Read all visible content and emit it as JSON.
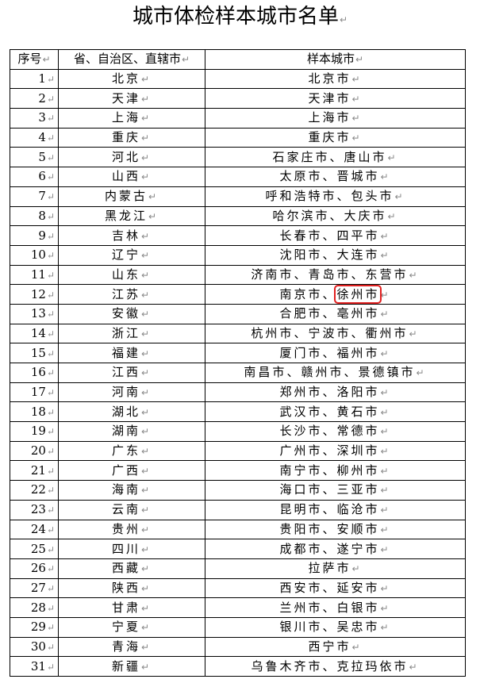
{
  "title": "城市体检样本城市名单",
  "headers": [
    "序号",
    "省、自治区、直辖市",
    "样本城市"
  ],
  "rows": [
    {
      "no": "1",
      "province": "北京",
      "cities": [
        "北京市"
      ]
    },
    {
      "no": "2",
      "province": "天津",
      "cities": [
        "天津市"
      ]
    },
    {
      "no": "3",
      "province": "上海",
      "cities": [
        "上海市"
      ]
    },
    {
      "no": "4",
      "province": "重庆",
      "cities": [
        "重庆市"
      ]
    },
    {
      "no": "5",
      "province": "河北",
      "cities": [
        "石家庄市",
        "唐山市"
      ]
    },
    {
      "no": "6",
      "province": "山西",
      "cities": [
        "太原市",
        "晋城市"
      ]
    },
    {
      "no": "7",
      "province": "内蒙古",
      "cities": [
        "呼和浩特市",
        "包头市"
      ]
    },
    {
      "no": "8",
      "province": "黑龙江",
      "cities": [
        "哈尔滨市",
        "大庆市"
      ]
    },
    {
      "no": "9",
      "province": "吉林",
      "cities": [
        "长春市",
        "四平市"
      ]
    },
    {
      "no": "10",
      "province": "辽宁",
      "cities": [
        "沈阳市",
        "大连市"
      ]
    },
    {
      "no": "11",
      "province": "山东",
      "cities": [
        "济南市",
        "青岛市",
        "东营市"
      ]
    },
    {
      "no": "12",
      "province": "江苏",
      "cities": [
        "南京市",
        "徐州市"
      ],
      "highlight": "徐州市"
    },
    {
      "no": "13",
      "province": "安徽",
      "cities": [
        "合肥市",
        "亳州市"
      ]
    },
    {
      "no": "14",
      "province": "浙江",
      "cities": [
        "杭州市",
        "宁波市",
        "衢州市"
      ]
    },
    {
      "no": "15",
      "province": "福建",
      "cities": [
        "厦门市",
        "福州市"
      ]
    },
    {
      "no": "16",
      "province": "江西",
      "cities": [
        "南昌市",
        "赣州市",
        "景德镇市"
      ]
    },
    {
      "no": "17",
      "province": "河南",
      "cities": [
        "郑州市",
        "洛阳市"
      ]
    },
    {
      "no": "18",
      "province": "湖北",
      "cities": [
        "武汉市",
        "黄石市"
      ]
    },
    {
      "no": "19",
      "province": "湖南",
      "cities": [
        "长沙市",
        "常德市"
      ]
    },
    {
      "no": "20",
      "province": "广东",
      "cities": [
        "广州市",
        "深圳市"
      ]
    },
    {
      "no": "21",
      "province": "广西",
      "cities": [
        "南宁市",
        "柳州市"
      ]
    },
    {
      "no": "22",
      "province": "海南",
      "cities": [
        "海口市",
        "三亚市"
      ]
    },
    {
      "no": "23",
      "province": "云南",
      "cities": [
        "昆明市",
        "临沧市"
      ]
    },
    {
      "no": "24",
      "province": "贵州",
      "cities": [
        "贵阳市",
        "安顺市"
      ]
    },
    {
      "no": "25",
      "province": "四川",
      "cities": [
        "成都市",
        "遂宁市"
      ]
    },
    {
      "no": "26",
      "province": "西藏",
      "cities": [
        "拉萨市"
      ]
    },
    {
      "no": "27",
      "province": "陕西",
      "cities": [
        "西安市",
        "延安市"
      ]
    },
    {
      "no": "28",
      "province": "甘肃",
      "cities": [
        "兰州市",
        "白银市"
      ]
    },
    {
      "no": "29",
      "province": "宁夏",
      "cities": [
        "银川市",
        "吴忠市"
      ]
    },
    {
      "no": "30",
      "province": "青海",
      "cities": [
        "西宁市"
      ]
    },
    {
      "no": "31",
      "province": "新疆",
      "cities": [
        "乌鲁木齐市",
        "克拉玛依市"
      ]
    }
  ],
  "separator": "、",
  "paragraph_mark": "↵",
  "highlight_color": "#e02020"
}
